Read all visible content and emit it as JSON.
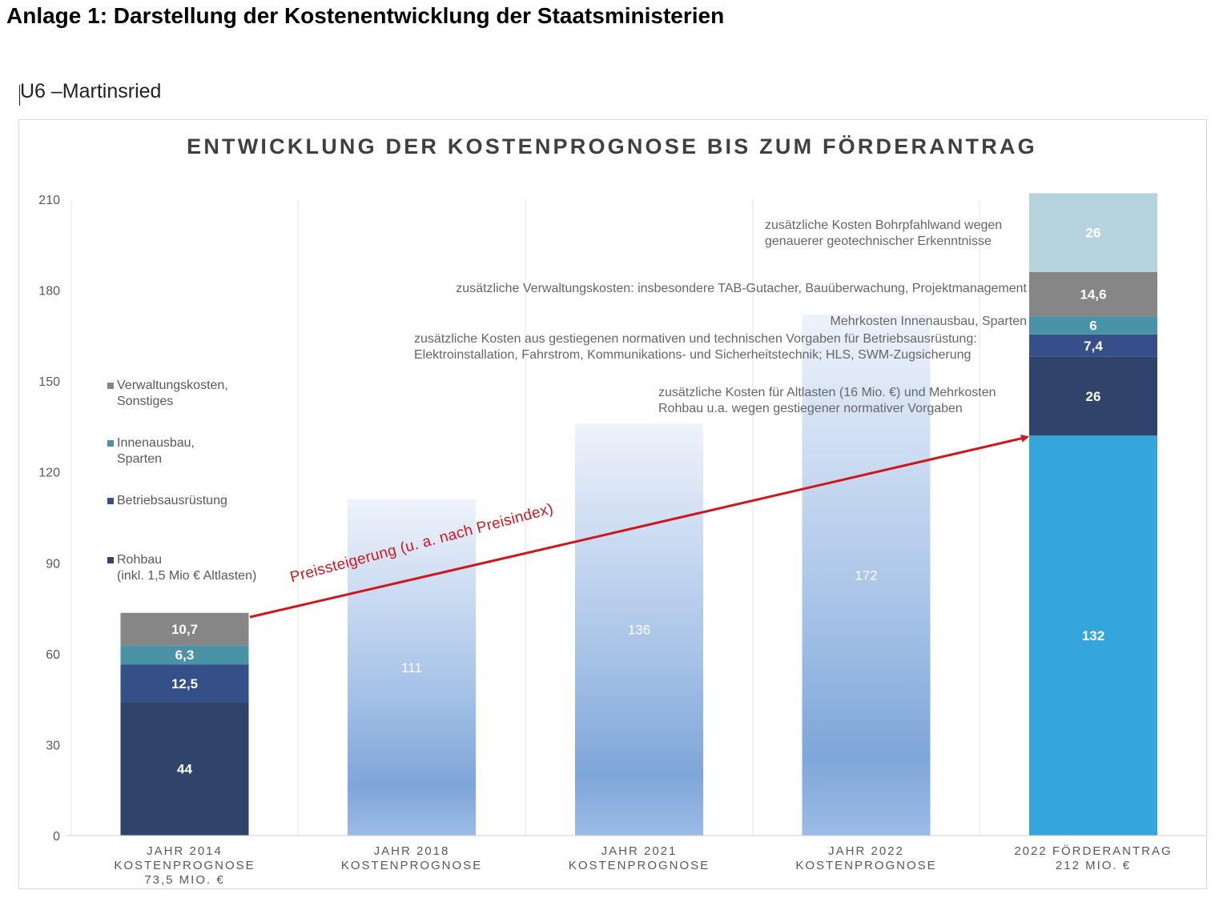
{
  "page": {
    "title": "Anlage 1: Darstellung der Kostenentwicklung der Staatsministerien",
    "section_title": "U6 –Martinsried"
  },
  "chart_data": {
    "type": "bar",
    "title": "ENTWICKLUNG DER KOSTENPROGNOSE BIS ZUM FÖRDERANTRAG",
    "ylim": [
      0,
      210
    ],
    "yticks": [
      0,
      30,
      60,
      90,
      120,
      150,
      180,
      210
    ],
    "grid": "vertical category separators",
    "legend_position": "left",
    "colors": {
      "rohbau": "#30436a",
      "betrieb": "#355089",
      "innen": "#4a93a7",
      "verwaltung": "#868686",
      "bohrpfahl": "#b7d3de",
      "rohbau_2022": "#35a6dd",
      "gradient_bar": "#7ea6d8",
      "arrow": "#d0161a",
      "gridline": "#e3e3e3"
    },
    "categories": [
      [
        "JAHR 2014",
        "KOSTENPROGNOSE",
        "73,5 MIO. €"
      ],
      [
        "JAHR 2018",
        "KOSTENPROGNOSE"
      ],
      [
        "JAHR 2021",
        "KOSTENPROGNOSE"
      ],
      [
        "JAHR 2022",
        "KOSTENPROGNOSE"
      ],
      [
        "2022 FÖRDERANTRAG",
        "212 MIO. €"
      ]
    ],
    "bars": [
      {
        "category": 0,
        "kind": "stacked",
        "segments": [
          {
            "series": "Rohbau",
            "value": 44,
            "label": "44",
            "color_key": "rohbau"
          },
          {
            "series": "Betriebsausrüstung",
            "value": 12.5,
            "label": "12,5",
            "color_key": "betrieb"
          },
          {
            "series": "Innenausbau, Sparten",
            "value": 6.3,
            "label": "6,3",
            "color_key": "innen"
          },
          {
            "series": "Verwaltungskosten, Sonstiges",
            "value": 10.7,
            "label": "10,7",
            "color_key": "verwaltung"
          }
        ]
      },
      {
        "category": 1,
        "kind": "gradient",
        "value": 111,
        "label": "111"
      },
      {
        "category": 2,
        "kind": "gradient",
        "value": 136,
        "label": "136"
      },
      {
        "category": 3,
        "kind": "gradient",
        "value": 172,
        "label": "172"
      },
      {
        "category": 4,
        "kind": "stacked",
        "segments": [
          {
            "series": "Rohbau",
            "value": 132,
            "label": "132",
            "color_key": "rohbau_2022"
          },
          {
            "series": "zusätzliche Kosten Altlasten / Mehrkosten Rohbau",
            "value": 26,
            "label": "26",
            "color_key": "rohbau"
          },
          {
            "series": "Betriebsausrüstung",
            "value": 7.4,
            "label": "7,4",
            "color_key": "betrieb"
          },
          {
            "series": "Innenausbau, Sparten",
            "value": 6,
            "label": "6",
            "color_key": "innen"
          },
          {
            "series": "Verwaltungskosten",
            "value": 14.6,
            "label": "14,6",
            "color_key": "verwaltung"
          },
          {
            "series": "Bohrpfahlwand",
            "value": 26,
            "label": "26",
            "color_key": "bohrpfahl"
          }
        ]
      }
    ],
    "legend": [
      {
        "label": "Verwaltungskosten,\nSonstiges",
        "color_key": "verwaltung"
      },
      {
        "label": "Innenausbau,\nSparten",
        "color_key": "innen"
      },
      {
        "label": "Betriebsausrüstung",
        "color_key": "betrieb"
      },
      {
        "label": "Rohbau\n(inkl. 1,5 Mio € Altlasten)",
        "color_key": "rohbau"
      }
    ],
    "annotations": {
      "bohrpfahl": [
        "zusätzliche Kosten Bohrpfahlwand wegen",
        "genauerer geotechnischer Erkenntnisse"
      ],
      "verwaltung": [
        "zusätzliche Verwaltungskosten: insbesondere TAB-Gutacher, Bauüberwachung, Projektmanagement"
      ],
      "innen": [
        "Mehrkosten Innenausbau, Sparten"
      ],
      "betrieb": [
        "zusätzliche Kosten aus gestiegenen normativen und technischen Vorgaben für Betriebsausrüstung:",
        "Elektroinstallation, Fahrstrom, Kommunikations- und Sicherheitstechnik; HLS, SWM-Zugsicherung"
      ],
      "altlasten": [
        "zusätzliche Kosten für Altlasten (16 Mio. €) und Mehrkosten",
        "Rohbau u.a. wegen gestiegener normativer Vorgaben"
      ],
      "arrow": "Preissteigerung (u. a. nach Preisindex)"
    }
  }
}
